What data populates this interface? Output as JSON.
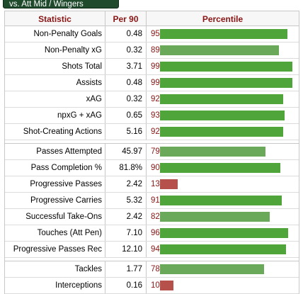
{
  "tab": {
    "label": "vs. Att Mid / Wingers"
  },
  "header": {
    "statistic": "Statistic",
    "per90": "Per 90",
    "percentile": "Percentile"
  },
  "colors": {
    "high": "#4fa53a",
    "mid": "#6aa85a",
    "low": "#b5504b"
  },
  "groups": [
    [
      {
        "stat": "Non-Penalty Goals",
        "per90": "0.48",
        "pct": "95"
      },
      {
        "stat": "Non-Penalty xG",
        "per90": "0.32",
        "pct": "89"
      },
      {
        "stat": "Shots Total",
        "per90": "3.71",
        "pct": "99"
      },
      {
        "stat": "Assists",
        "per90": "0.48",
        "pct": "99"
      },
      {
        "stat": "xAG",
        "per90": "0.32",
        "pct": "92"
      },
      {
        "stat": "npxG + xAG",
        "per90": "0.65",
        "pct": "93"
      },
      {
        "stat": "Shot-Creating Actions",
        "per90": "5.16",
        "pct": "92"
      }
    ],
    [
      {
        "stat": "Passes Attempted",
        "per90": "45.97",
        "pct": "79"
      },
      {
        "stat": "Pass Completion %",
        "per90": "81.8%",
        "pct": "90"
      },
      {
        "stat": "Progressive Passes",
        "per90": "2.42",
        "pct": "13"
      },
      {
        "stat": "Progressive Carries",
        "per90": "5.32",
        "pct": "91"
      },
      {
        "stat": "Successful Take-Ons",
        "per90": "2.42",
        "pct": "82"
      },
      {
        "stat": "Touches (Att Pen)",
        "per90": "7.10",
        "pct": "96"
      },
      {
        "stat": "Progressive Passes Rec",
        "per90": "12.10",
        "pct": "94"
      }
    ],
    [
      {
        "stat": "Tackles",
        "per90": "1.77",
        "pct": "78"
      },
      {
        "stat": "Interceptions",
        "per90": "0.16",
        "pct": "10"
      }
    ]
  ]
}
